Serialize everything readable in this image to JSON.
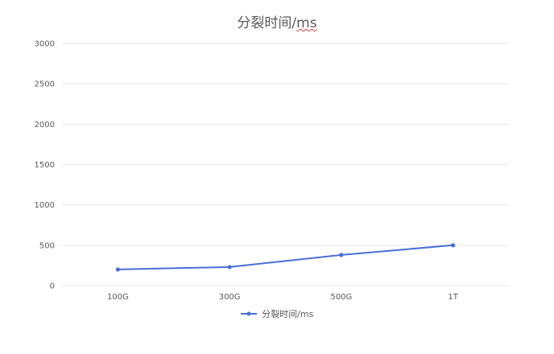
{
  "chart_data": {
    "type": "line",
    "title": "分裂时间/ms",
    "categories": [
      "100G",
      "300G",
      "500G",
      "1T"
    ],
    "series": [
      {
        "name": "分裂时间/ms",
        "values": [
          200,
          230,
          380,
          500
        ],
        "color": "#4a6fd6"
      }
    ],
    "ylim": [
      0,
      3000
    ],
    "yticks": [
      "0",
      "500",
      "1000",
      "1500",
      "2000",
      "2500",
      "3000"
    ],
    "grid": true,
    "legend": "bottom-center",
    "xlabel": "",
    "ylabel": ""
  },
  "colors": {
    "grid": "#e6e6e6",
    "text": "#595959",
    "background": "#ffffff"
  }
}
